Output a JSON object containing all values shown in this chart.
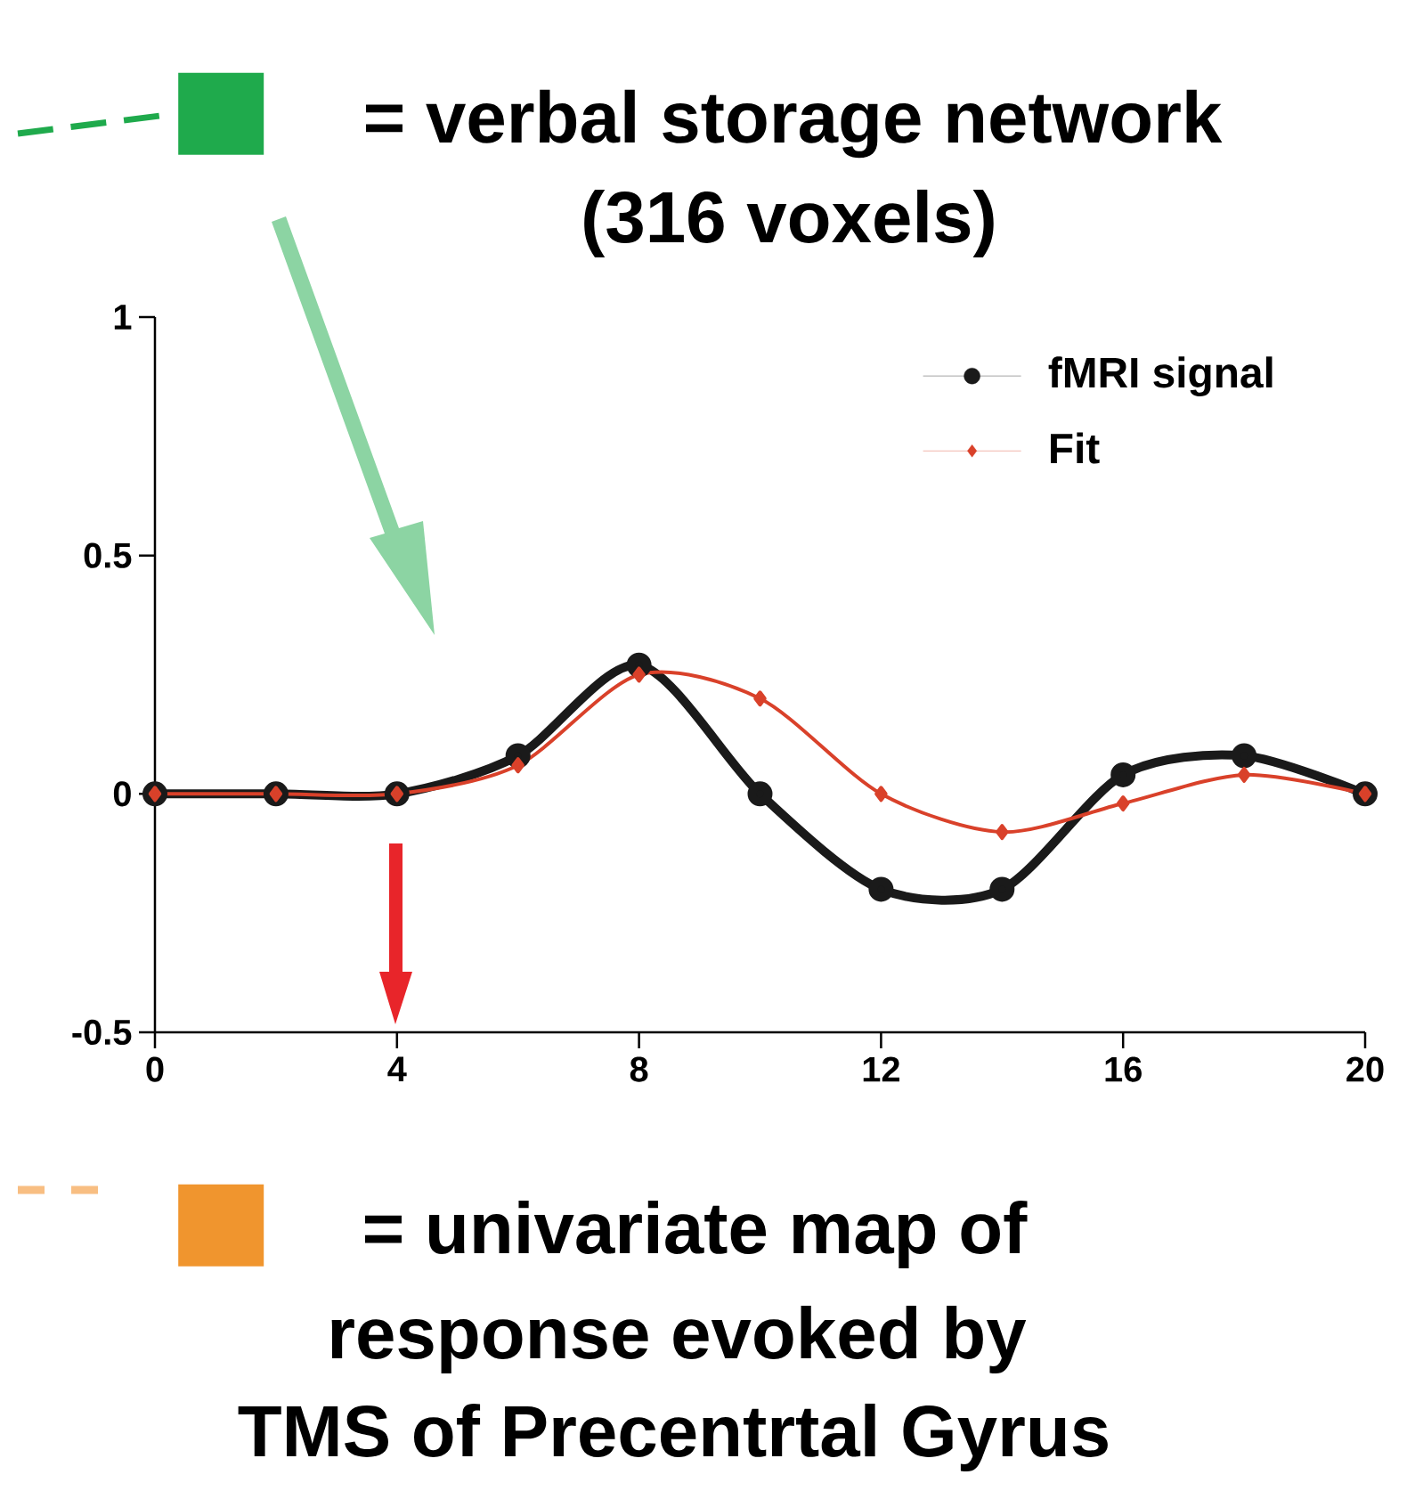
{
  "chart_data": {
    "type": "line",
    "title": "= verbal storage network",
    "subtitle": "(316 voxels)",
    "annotations": [
      "= univariate map of",
      "response evoked by",
      "TMS of Precentrtal Gyrus"
    ],
    "x": [
      0,
      2,
      4,
      6,
      8,
      10,
      12,
      14,
      16,
      18,
      20
    ],
    "series": [
      {
        "name": "fMRI signal",
        "color": "#1a1a1a",
        "marker": "circle",
        "values": [
          0,
          0,
          0,
          0.08,
          0.27,
          0,
          -0.2,
          -0.2,
          0.04,
          0.08,
          0
        ]
      },
      {
        "name": "Fit",
        "color": "#d9412a",
        "marker": "diamond",
        "values": [
          0,
          0,
          0,
          0.06,
          0.25,
          0.2,
          0,
          -0.08,
          -0.02,
          0.04,
          0
        ]
      }
    ],
    "xlim": [
      0,
      20
    ],
    "xticks": [
      0,
      4,
      8,
      12,
      16,
      20
    ],
    "ylim": [
      -0.5,
      1
    ],
    "yticks": [
      -0.5,
      0,
      0.5,
      1
    ],
    "legend": "top right",
    "grid": false
  }
}
